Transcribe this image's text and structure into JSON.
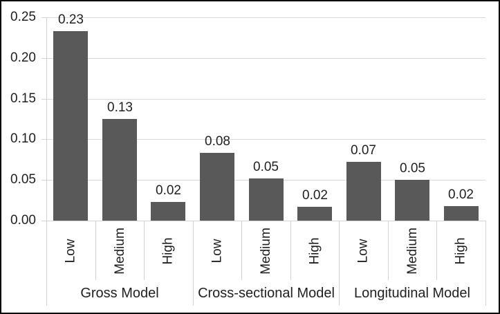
{
  "chart_data": {
    "type": "bar",
    "title": "",
    "categories_per_group": [
      "Low",
      "Medium",
      "High"
    ],
    "groups": [
      {
        "label": "Gross Model",
        "categories": [
          "Low",
          "Medium",
          "High"
        ],
        "values": [
          0.233,
          0.125,
          0.023
        ],
        "value_labels": [
          "0.23",
          "0.13",
          "0.02"
        ]
      },
      {
        "label": "Cross-sectional Model",
        "categories": [
          "Low",
          "Medium",
          "High"
        ],
        "values": [
          0.083,
          0.052,
          0.017
        ],
        "value_labels": [
          "0.08",
          "0.05",
          "0.02"
        ]
      },
      {
        "label": "Longitudinal Model",
        "categories": [
          "Low",
          "Medium",
          "High"
        ],
        "values": [
          0.072,
          0.05,
          0.018
        ],
        "value_labels": [
          "0.07",
          "0.05",
          "0.02"
        ]
      }
    ],
    "y_axis": {
      "min": 0,
      "max": 0.25,
      "step": 0.05,
      "tick_labels": [
        "0.00",
        "0.05",
        "0.10",
        "0.15",
        "0.20",
        "0.25"
      ]
    },
    "legend": null,
    "grid": true,
    "colors": {
      "bar": "#595959",
      "gridline": "#d9d9d9",
      "axis": "#d2d2d2",
      "text": "#1f1f1f",
      "border": "#000000",
      "background": "#ffffff"
    }
  }
}
